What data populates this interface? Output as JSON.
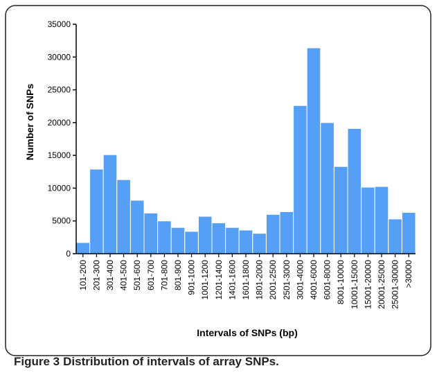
{
  "chart_data": {
    "type": "bar",
    "caption_label": "Figure 3",
    "caption": "Distribution of intervals of array SNPs.",
    "xlabel": "Intervals of SNPs (bp)",
    "ylabel": "Number of SNPs",
    "categories": [
      "101-200",
      "201-300",
      "301-400",
      "401-500",
      "501-600",
      "601-700",
      "701-800",
      "801-900",
      "901-1000",
      "1001-1200",
      "1201-1400",
      "1401-1600",
      "1601-1800",
      "1801-2000",
      "2001-2500",
      "2501-3000",
      "3001-4000",
      "4001-6000",
      "6001-8000",
      "8001-10000",
      "10001-15000",
      "15001-20000",
      "20001-25000",
      "25001-30000",
      ">30000"
    ],
    "values": [
      1700,
      12900,
      15100,
      11300,
      8150,
      6200,
      5000,
      4000,
      3400,
      5700,
      4700,
      4000,
      3600,
      3100,
      6000,
      6400,
      22600,
      31400,
      20000,
      13300,
      19100,
      10150,
      10250,
      5300,
      6300
    ],
    "color": "#559ff7",
    "ylim": [
      0,
      35000
    ],
    "yticks": [
      0,
      5000,
      10000,
      15000,
      20000,
      25000,
      30000,
      35000
    ]
  }
}
